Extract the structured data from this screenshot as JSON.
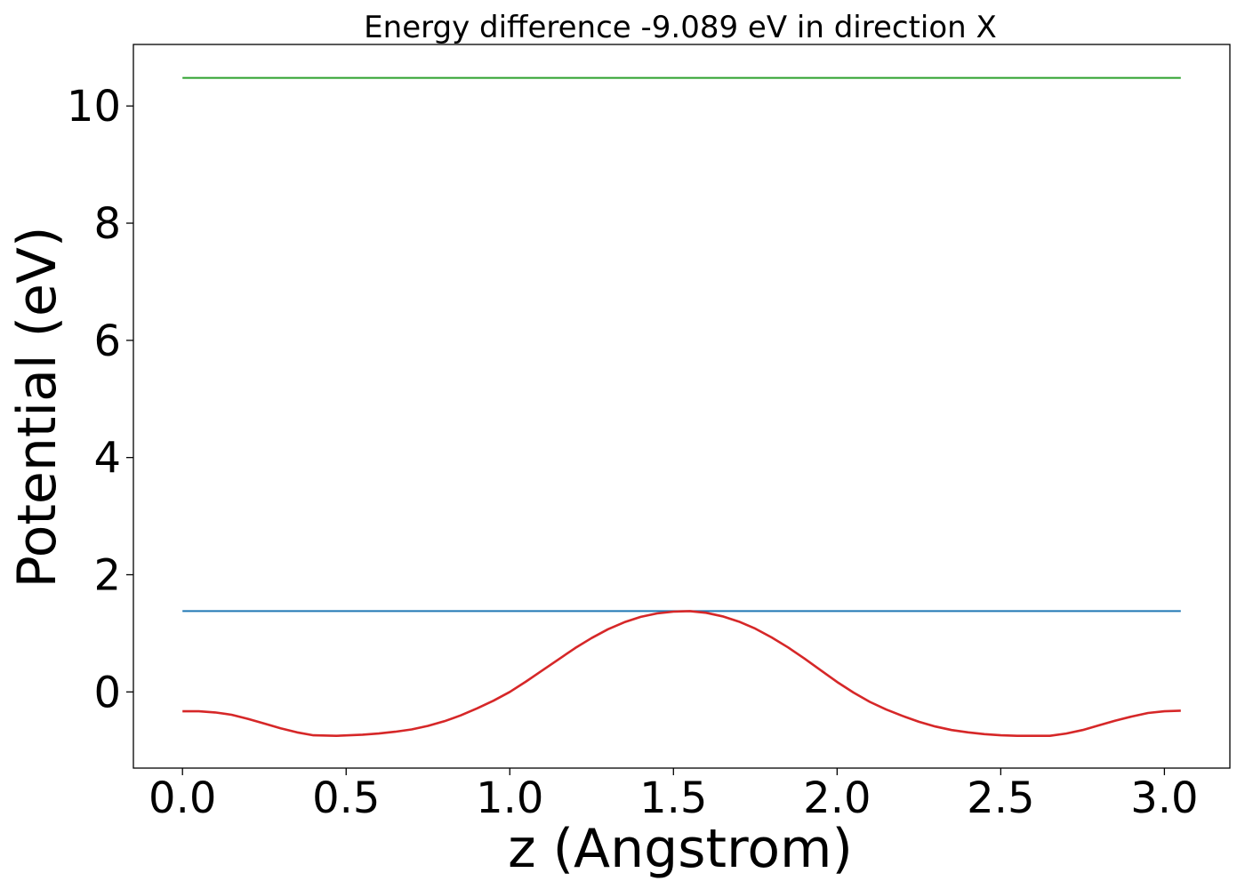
{
  "chart_data": {
    "type": "line",
    "title": "Energy difference -9.089 eV in direction X",
    "xlabel": "z (Angstrom)",
    "ylabel": "Potential (eV)",
    "xlim": [
      -0.15,
      3.2
    ],
    "ylim": [
      -1.3,
      11.05
    ],
    "xticks": [
      0.0,
      0.5,
      1.0,
      1.5,
      2.0,
      2.5,
      3.0
    ],
    "xtick_labels": [
      "0.0",
      "0.5",
      "1.0",
      "1.5",
      "2.0",
      "2.5",
      "3.0"
    ],
    "yticks": [
      0,
      2,
      4,
      6,
      8,
      10
    ],
    "ytick_labels": [
      "0",
      "2",
      "4",
      "6",
      "8",
      "10"
    ],
    "grid": false,
    "series": [
      {
        "color": "#2ca02c",
        "x": [
          0.0,
          3.05
        ],
        "y": [
          10.48,
          10.48
        ]
      },
      {
        "color": "#1f77b4",
        "x": [
          0.0,
          3.05
        ],
        "y": [
          1.38,
          1.38
        ]
      },
      {
        "color": "#d62728",
        "x": [
          0.0,
          0.05,
          0.1,
          0.15,
          0.2,
          0.25,
          0.3,
          0.35,
          0.4,
          0.47,
          0.55,
          0.6,
          0.65,
          0.7,
          0.75,
          0.8,
          0.85,
          0.9,
          0.95,
          1.0,
          1.05,
          1.1,
          1.15,
          1.2,
          1.25,
          1.3,
          1.35,
          1.4,
          1.45,
          1.5,
          1.55,
          1.6,
          1.65,
          1.7,
          1.75,
          1.8,
          1.85,
          1.9,
          1.95,
          2.0,
          2.05,
          2.1,
          2.15,
          2.2,
          2.25,
          2.3,
          2.35,
          2.4,
          2.45,
          2.5,
          2.55,
          2.6,
          2.65,
          2.7,
          2.75,
          2.8,
          2.85,
          2.9,
          2.95,
          3.0,
          3.05
        ],
        "y": [
          -0.33,
          -0.33,
          -0.35,
          -0.39,
          -0.46,
          -0.54,
          -0.62,
          -0.69,
          -0.74,
          -0.75,
          -0.73,
          -0.71,
          -0.68,
          -0.64,
          -0.58,
          -0.5,
          -0.4,
          -0.28,
          -0.15,
          0.0,
          0.18,
          0.37,
          0.56,
          0.75,
          0.92,
          1.07,
          1.19,
          1.28,
          1.34,
          1.37,
          1.38,
          1.35,
          1.29,
          1.2,
          1.08,
          0.93,
          0.76,
          0.57,
          0.37,
          0.17,
          -0.01,
          -0.17,
          -0.3,
          -0.41,
          -0.51,
          -0.59,
          -0.65,
          -0.69,
          -0.72,
          -0.74,
          -0.75,
          -0.75,
          -0.75,
          -0.71,
          -0.65,
          -0.57,
          -0.49,
          -0.42,
          -0.36,
          -0.33,
          -0.32
        ]
      }
    ]
  }
}
